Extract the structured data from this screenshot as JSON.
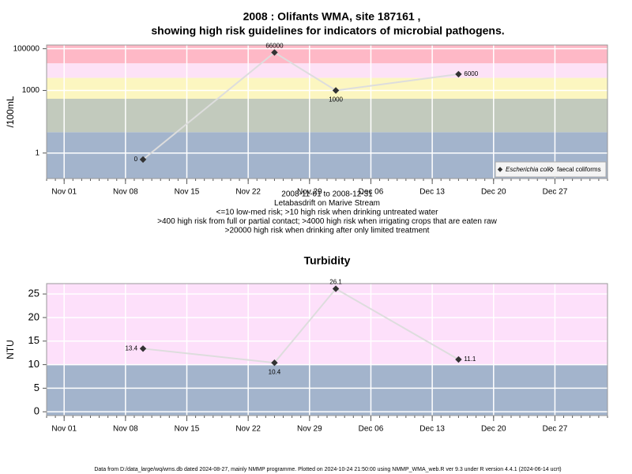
{
  "title": "2008 : Olifants WMA, site 187161 ,",
  "subtitle": "showing high risk guidelines for indicators of microbial pathogens.",
  "footer": "Data from D:/data_large/wq/wms.db dated 2024-08-27, mainly NMMP programme. Plotted on 2024-10-24 21:50:00 using NMMP_WMA_web.R ver 9.3 under R version 4.4.1 (2024-06-14 ucrt)",
  "chart_data": [
    {
      "type": "line",
      "y_label": "/100mL",
      "log_scale": true,
      "grid": true,
      "legend": "bottom-right",
      "x": [
        "2008-11-10",
        "2008-11-25",
        "2008-12-02",
        "2008-12-16"
      ],
      "xlim": [
        "2008-10-30",
        "2009-01-02"
      ],
      "xticks": [
        {
          "value": "2008-11-01",
          "label": "Nov 01"
        },
        {
          "value": "2008-11-08",
          "label": "Nov 08"
        },
        {
          "value": "2008-11-15",
          "label": "Nov 15"
        },
        {
          "value": "2008-11-22",
          "label": "Nov 22"
        },
        {
          "value": "2008-11-29",
          "label": "Nov 29"
        },
        {
          "value": "2008-12-06",
          "label": "Dec 06"
        },
        {
          "value": "2008-12-13",
          "label": "Dec 13"
        },
        {
          "value": "2008-12-20",
          "label": "Dec 20"
        },
        {
          "value": "2008-12-27",
          "label": "Dec 27"
        }
      ],
      "ylim": [
        0.06,
        150000
      ],
      "yticks": [
        1,
        1000,
        100000
      ],
      "band_edges": [
        10,
        400,
        4000,
        20000
      ],
      "band_colors": [
        "#a3b4cc",
        "#c2cabd",
        "#fcf6c0",
        "#fde2f6",
        "#feb8c6"
      ],
      "series": [
        {
          "name": "Escherichia coli",
          "color": "#333333",
          "line_color": "#dddddd",
          "filled": true,
          "values": [
            0.49,
            66000,
            1000,
            6000
          ],
          "value_labels": [
            "0",
            "66000",
            "1000",
            "6000"
          ]
        },
        {
          "name": "faecal coliforms",
          "color": "#333333",
          "line_color": "#dddddd",
          "filled": false,
          "values": [
            null,
            null,
            null,
            null
          ]
        }
      ],
      "notes": [
        "2008-11-01 to 2008-12-31",
        "Letabasdrift on Marive Stream",
        "<=10 low-med risk; >10 high risk when drinking untreated water",
        ">400 high risk from full or partial contact; >4000 high risk when irrigating crops that are eaten raw",
        ">20000 high risk when drinking after only limited treatment"
      ]
    },
    {
      "type": "line",
      "title": "Turbidity",
      "y_label": "NTU",
      "log_scale": false,
      "grid": true,
      "x": [
        "2008-11-10",
        "2008-11-25",
        "2008-12-02",
        "2008-12-16"
      ],
      "xlim": [
        "2008-10-30",
        "2009-01-02"
      ],
      "xticks": [
        {
          "value": "2008-11-01",
          "label": "Nov 01"
        },
        {
          "value": "2008-11-08",
          "label": "Nov 08"
        },
        {
          "value": "2008-11-15",
          "label": "Nov 15"
        },
        {
          "value": "2008-11-22",
          "label": "Nov 22"
        },
        {
          "value": "2008-11-29",
          "label": "Nov 29"
        },
        {
          "value": "2008-12-06",
          "label": "Dec 06"
        },
        {
          "value": "2008-12-13",
          "label": "Dec 13"
        },
        {
          "value": "2008-12-20",
          "label": "Dec 20"
        },
        {
          "value": "2008-12-27",
          "label": "Dec 27"
        }
      ],
      "ylim": [
        -0.8,
        27.2
      ],
      "yticks": [
        0,
        5,
        10,
        15,
        20,
        25
      ],
      "band_edges": [
        10
      ],
      "band_colors": [
        "#a3b4cc",
        "#fde0fa"
      ],
      "series": [
        {
          "name": "Turbidity",
          "color": "#333333",
          "line_color": "#dddddd",
          "filled": true,
          "values": [
            13.4,
            10.4,
            26.1,
            11.1
          ]
        }
      ]
    }
  ]
}
